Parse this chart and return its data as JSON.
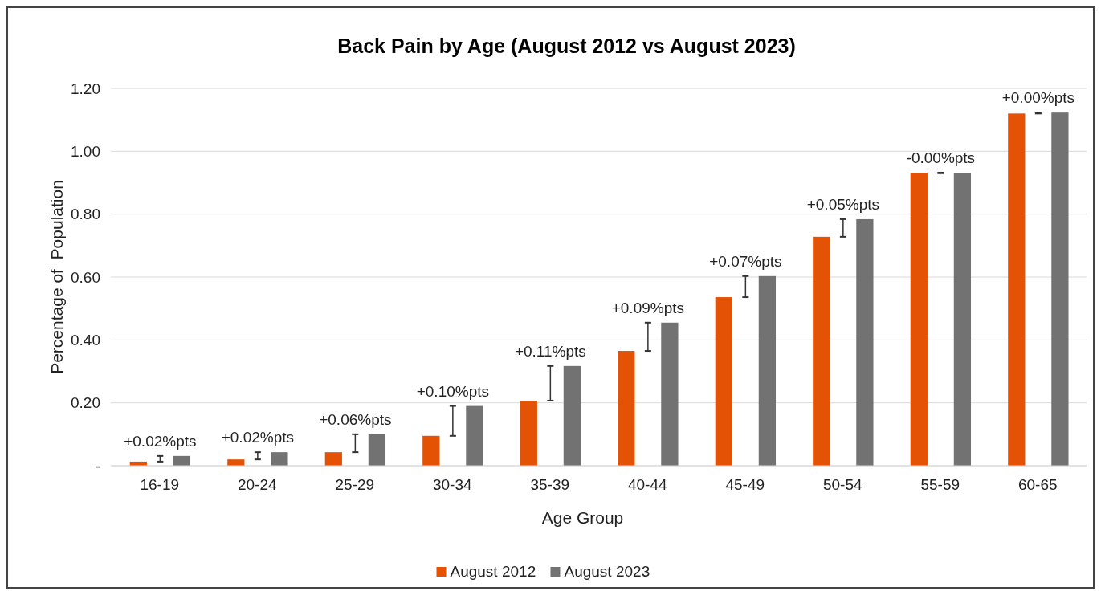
{
  "chart_data": {
    "type": "bar",
    "title": "Back Pain by Age (August 2012 vs August 2023)",
    "xlabel": "Age Group",
    "ylabel": "Percentage of  Population",
    "categories": [
      "16-19",
      "20-24",
      "25-29",
      "30-34",
      "35-39",
      "40-44",
      "45-49",
      "50-54",
      "55-59",
      "60-65"
    ],
    "series": [
      {
        "name": "August 2012",
        "color": "#e35205",
        "values": [
          0.013,
          0.02,
          0.043,
          0.095,
          0.207,
          0.365,
          0.536,
          0.728,
          0.932,
          1.12
        ]
      },
      {
        "name": "August 2023",
        "color": "#727272",
        "values": [
          0.031,
          0.043,
          0.1,
          0.19,
          0.317,
          0.455,
          0.603,
          0.784,
          0.93,
          1.123
        ]
      }
    ],
    "ylim": [
      0,
      1.2
    ],
    "yticks": [
      {
        "value": 0,
        "label": "-"
      },
      {
        "value": 0.2,
        "label": "0.20"
      },
      {
        "value": 0.4,
        "label": "0.40"
      },
      {
        "value": 0.6,
        "label": "0.60"
      },
      {
        "value": 0.8,
        "label": "0.80"
      },
      {
        "value": 1,
        "label": "1.00"
      },
      {
        "value": 1.2,
        "label": "1.20"
      }
    ],
    "grid": "y",
    "legend": "bottom",
    "annotations": [
      "+0.02%pts",
      "+0.02%pts",
      "+0.06%pts",
      "+0.10%pts",
      "+0.11%pts",
      "+0.09%pts",
      "+0.07%pts",
      "+0.05%pts",
      "-0.00%pts",
      "+0.00%pts"
    ]
  }
}
